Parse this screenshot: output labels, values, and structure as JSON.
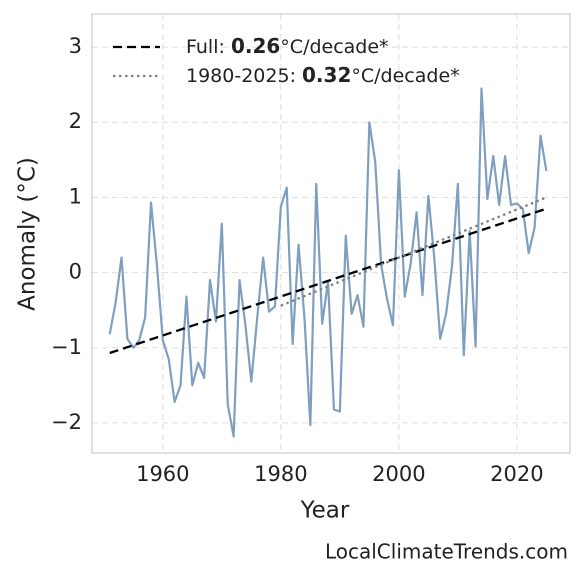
{
  "chart_data": {
    "type": "line",
    "xlabel": "Year",
    "ylabel": "Anomaly (°C)",
    "footer": "LocalClimateTrends.com",
    "xlim": [
      1948,
      2029
    ],
    "ylim": [
      -2.4,
      3.44
    ],
    "xticks": [
      1960,
      1980,
      2000,
      2020
    ],
    "yticks": [
      {
        "value": -2,
        "label": "−2"
      },
      {
        "value": -1,
        "label": "−1"
      },
      0,
      1,
      2,
      3
    ],
    "grid": true,
    "legend": "upper left",
    "series": [
      {
        "color": "#7f9fc0",
        "x": [
          1951,
          1952,
          1953,
          1954,
          1955,
          1956,
          1957,
          1958,
          1959,
          1960,
          1961,
          1962,
          1963,
          1964,
          1965,
          1966,
          1967,
          1968,
          1969,
          1970,
          1971,
          1972,
          1973,
          1974,
          1975,
          1976,
          1977,
          1978,
          1979,
          1980,
          1981,
          1982,
          1983,
          1984,
          1985,
          1986,
          1987,
          1988,
          1989,
          1990,
          1991,
          1992,
          1993,
          1994,
          1995,
          1996,
          1997,
          1998,
          1999,
          2000,
          2001,
          2002,
          2003,
          2004,
          2005,
          2006,
          2007,
          2008,
          2009,
          2010,
          2011,
          2012,
          2013,
          2014,
          2015,
          2016,
          2017,
          2018,
          2019,
          2020,
          2021,
          2022,
          2023,
          2024,
          2025
        ],
        "values": [
          -0.82,
          -0.4,
          0.2,
          -0.88,
          -1.0,
          -0.9,
          -0.6,
          0.93,
          0.1,
          -0.9,
          -1.15,
          -1.72,
          -1.5,
          -0.32,
          -1.5,
          -1.2,
          -1.4,
          -0.1,
          -0.65,
          0.65,
          -1.75,
          -2.18,
          -0.1,
          -0.7,
          -1.45,
          -0.6,
          0.2,
          -0.52,
          -0.45,
          0.88,
          1.13,
          -0.95,
          0.37,
          -0.6,
          -2.03,
          1.18,
          -0.68,
          -0.12,
          -1.82,
          -1.85,
          0.49,
          -0.55,
          -0.3,
          -0.72,
          2.0,
          1.47,
          0.1,
          -0.35,
          -0.7,
          1.36,
          -0.32,
          0.12,
          0.8,
          -0.3,
          1.02,
          0.2,
          -0.88,
          -0.55,
          0.08,
          1.18,
          -1.1,
          0.55,
          -0.98,
          2.45,
          0.98,
          1.55,
          0.9,
          1.55,
          0.9,
          0.92,
          0.85,
          0.26,
          0.6,
          1.82,
          1.35
        ]
      },
      {
        "name": [
          "Full: ",
          "0.26",
          "°C/decade*"
        ],
        "color": "#000000",
        "dash": "dashed",
        "x": [
          1951,
          2025
        ],
        "values": [
          -1.07,
          0.85
        ]
      },
      {
        "name": [
          "1980-2025: ",
          "0.32",
          "°C/decade*"
        ],
        "color": "#808080",
        "dash": "dotted",
        "x": [
          1980,
          2025
        ],
        "values": [
          -0.44,
          1.0
        ]
      }
    ]
  }
}
